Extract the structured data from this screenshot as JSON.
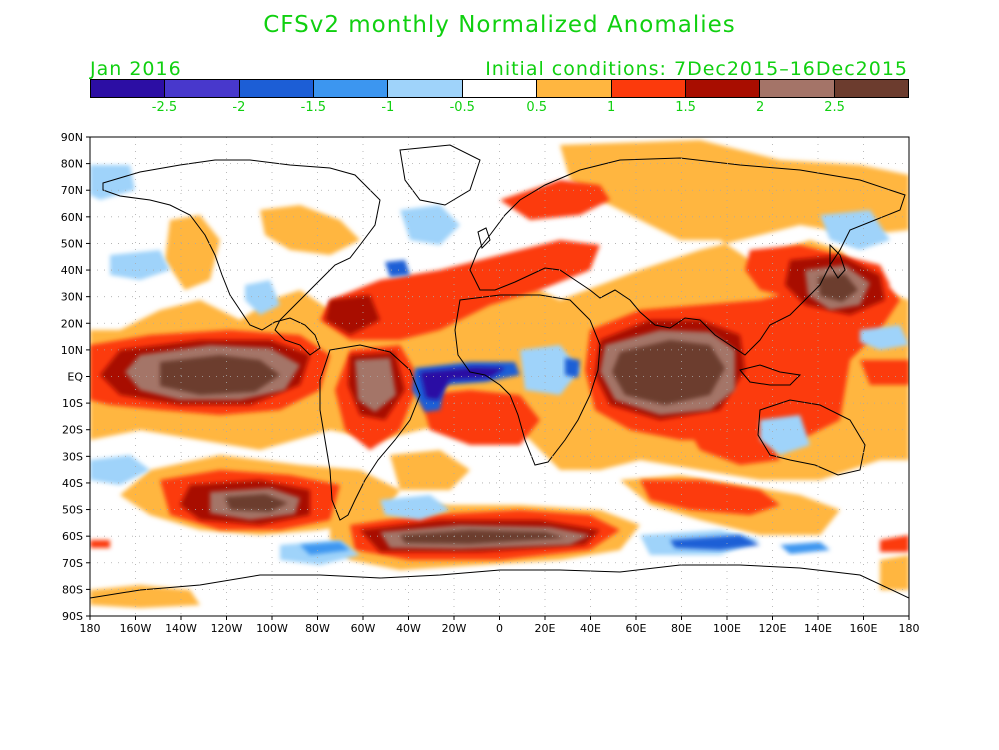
{
  "title": "CFSv2 monthly Normalized Anomalies",
  "valid_month": "Jan 2016",
  "initial_conditions": "Initial conditions: 7Dec2015–16Dec2015",
  "text_color": "#10d010",
  "colorbar": {
    "colors": [
      "#2c0ea4",
      "#4838cc",
      "#1c5ed6",
      "#3c96f0",
      "#9fd3fa",
      "#ffffff",
      "#ffb640",
      "#fc3a0c",
      "#a80d00",
      "#a47468",
      "#6c3c2e"
    ],
    "labels": [
      "-2.5",
      "-2",
      "-1.5",
      "-1",
      "-0.5",
      "0.5",
      "1",
      "1.5",
      "2",
      "2.5"
    ]
  },
  "map": {
    "lat_labels": [
      "90N",
      "80N",
      "70N",
      "60N",
      "50N",
      "40N",
      "30N",
      "20N",
      "10N",
      "EQ",
      "10S",
      "20S",
      "30S",
      "40S",
      "50S",
      "60S",
      "70S",
      "80S",
      "90S"
    ],
    "lon_labels": [
      "180",
      "160W",
      "140W",
      "120W",
      "100W",
      "80W",
      "60W",
      "40W",
      "20W",
      "0",
      "20E",
      "40E",
      "60E",
      "80E",
      "100E",
      "120E",
      "140E",
      "160E",
      "180"
    ],
    "grid": "dotted",
    "projection": "cylindrical equidistant"
  }
}
